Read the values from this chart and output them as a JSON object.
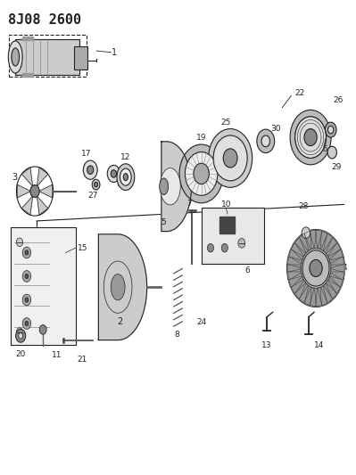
{
  "title": "8J08 2600",
  "bg_color": "#ffffff",
  "line_color": "#222222",
  "title_fontsize": 11,
  "fig_width": 3.99,
  "fig_height": 5.33,
  "dpi": 100
}
